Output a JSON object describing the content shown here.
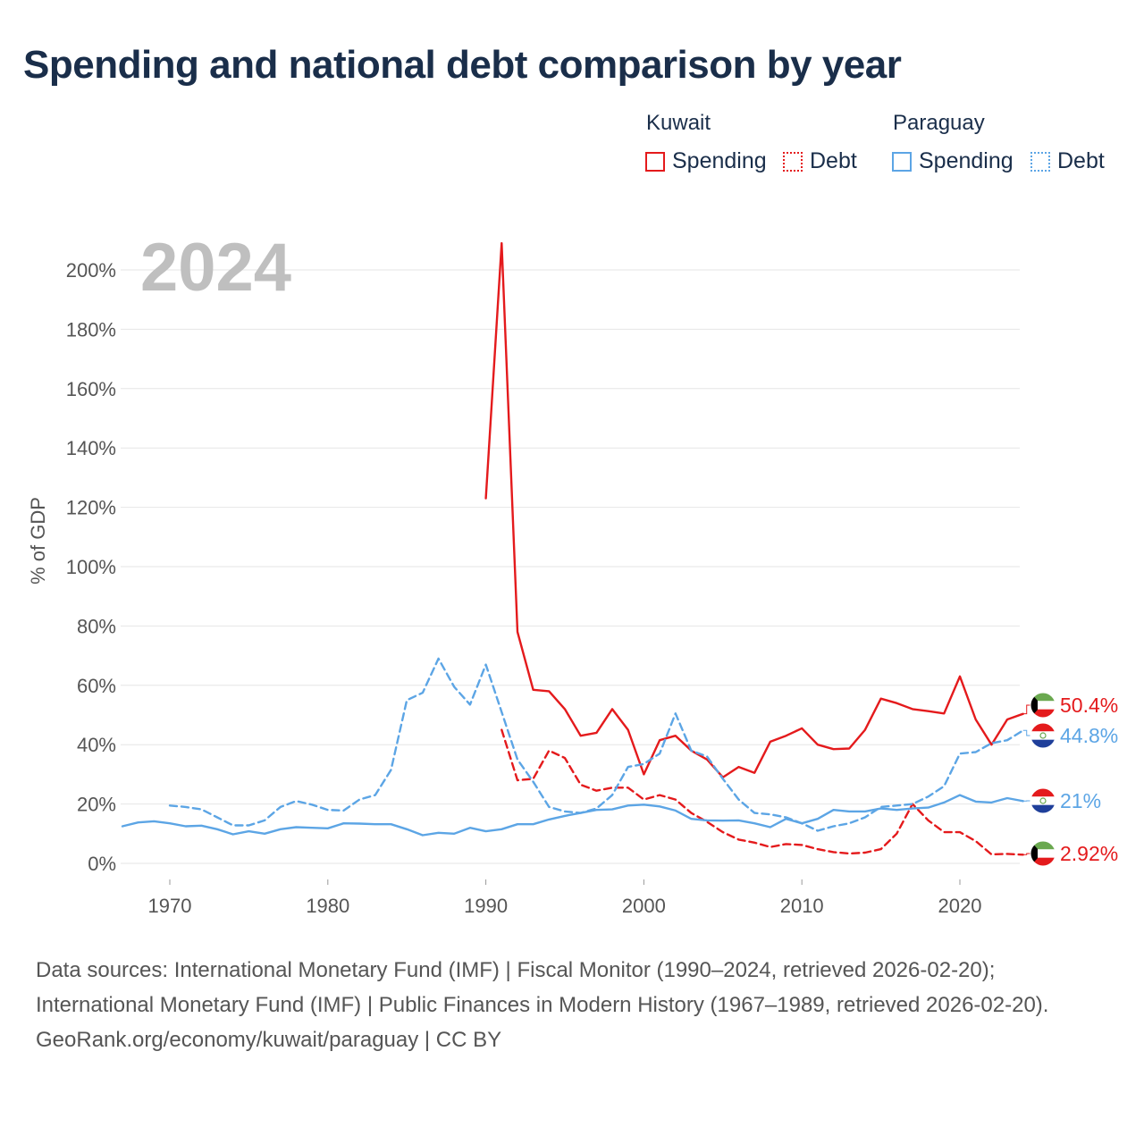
{
  "title": "Spending and national debt comparison by year",
  "legend": {
    "groups": [
      {
        "country": "Kuwait",
        "color": "#e41a1c",
        "items": [
          {
            "label": "Spending",
            "style": "solid"
          },
          {
            "label": "Debt",
            "style": "dotted"
          }
        ]
      },
      {
        "country": "Paraguay",
        "color": "#5ca5e5",
        "items": [
          {
            "label": "Spending",
            "style": "solid"
          },
          {
            "label": "Debt",
            "style": "dotted"
          }
        ]
      }
    ]
  },
  "year_label": "2024",
  "footer": {
    "sources": "Data sources: International Monetary Fund (IMF) | Fiscal Monitor (1990–2024, retrieved 2026-02-20); International Monetary Fund (IMF) | Public Finances in Modern History (1967–1989, retrieved 2026-02-20).",
    "attribution": "GeoRank.org/economy/kuwait/paraguay | CC BY"
  },
  "chart_data": {
    "type": "line",
    "title": "Spending and national debt comparison by year",
    "xlabel": "",
    "ylabel": "% of GDP",
    "xlim": [
      1967,
      2024
    ],
    "ylim": [
      0,
      210
    ],
    "x_ticks": [
      1970,
      1980,
      1990,
      2000,
      2010,
      2020
    ],
    "y_ticks": [
      0,
      20,
      40,
      60,
      80,
      100,
      120,
      140,
      160,
      180,
      200
    ],
    "y_tick_labels": [
      "0%",
      "20%",
      "40%",
      "60%",
      "80%",
      "100%",
      "120%",
      "140%",
      "160%",
      "180%",
      "200%"
    ],
    "grid": true,
    "series": [
      {
        "name": "Kuwait Spending",
        "country": "Kuwait",
        "color": "#e41a1c",
        "dash": "solid",
        "end_label": "50.4%",
        "flag": "kuwait",
        "points": [
          [
            1990,
            123
          ],
          [
            1991,
            209
          ],
          [
            1992,
            78
          ],
          [
            1993,
            58.5
          ],
          [
            1994,
            58
          ],
          [
            1995,
            52
          ],
          [
            1996,
            43
          ],
          [
            1997,
            44
          ],
          [
            1998,
            52
          ],
          [
            1999,
            45
          ],
          [
            2000,
            30
          ],
          [
            2001,
            41.5
          ],
          [
            2002,
            43
          ],
          [
            2003,
            38
          ],
          [
            2004,
            35
          ],
          [
            2005,
            29
          ],
          [
            2006,
            32.5
          ],
          [
            2007,
            30.5
          ],
          [
            2008,
            41
          ],
          [
            2009,
            43
          ],
          [
            2010,
            45.5
          ],
          [
            2011,
            40
          ],
          [
            2012,
            38.5
          ],
          [
            2013,
            38.7
          ],
          [
            2014,
            45
          ],
          [
            2015,
            55.5
          ],
          [
            2016,
            54
          ],
          [
            2017,
            52
          ],
          [
            2018,
            51.3
          ],
          [
            2019,
            50.5
          ],
          [
            2020,
            63
          ],
          [
            2021,
            48.5
          ],
          [
            2022,
            40
          ],
          [
            2023,
            48.5
          ],
          [
            2024,
            50.4
          ]
        ]
      },
      {
        "name": "Kuwait Debt",
        "country": "Kuwait",
        "color": "#e41a1c",
        "dash": "dashed",
        "end_label": "2.92%",
        "flag": "kuwait",
        "points": [
          [
            1991,
            45
          ],
          [
            1992,
            28
          ],
          [
            1993,
            28.5
          ],
          [
            1994,
            38
          ],
          [
            1995,
            35.5
          ],
          [
            1996,
            26.5
          ],
          [
            1997,
            24.5
          ],
          [
            1998,
            25.5
          ],
          [
            1999,
            25.5
          ],
          [
            2000,
            21.5
          ],
          [
            2001,
            23
          ],
          [
            2002,
            21.5
          ],
          [
            2003,
            17
          ],
          [
            2004,
            14
          ],
          [
            2005,
            10.5
          ],
          [
            2006,
            8
          ],
          [
            2007,
            7
          ],
          [
            2008,
            5.5
          ],
          [
            2009,
            6.5
          ],
          [
            2010,
            6.2
          ],
          [
            2011,
            4.8
          ],
          [
            2012,
            3.8
          ],
          [
            2013,
            3.3
          ],
          [
            2014,
            3.6
          ],
          [
            2015,
            4.8
          ],
          [
            2016,
            10
          ],
          [
            2017,
            20
          ],
          [
            2018,
            14.5
          ],
          [
            2019,
            10.5
          ],
          [
            2020,
            10.5
          ],
          [
            2021,
            7.5
          ],
          [
            2022,
            3
          ],
          [
            2023,
            3.2
          ],
          [
            2024,
            2.92
          ]
        ]
      },
      {
        "name": "Paraguay Spending",
        "country": "Paraguay",
        "color": "#5ca5e5",
        "dash": "solid",
        "end_label": "21%",
        "flag": "paraguay",
        "points": [
          [
            1967,
            12.5
          ],
          [
            1968,
            13.8
          ],
          [
            1969,
            14.2
          ],
          [
            1970,
            13.5
          ],
          [
            1971,
            12.5
          ],
          [
            1972,
            12.7
          ],
          [
            1973,
            11.5
          ],
          [
            1974,
            9.8
          ],
          [
            1975,
            10.8
          ],
          [
            1976,
            10
          ],
          [
            1977,
            11.5
          ],
          [
            1978,
            12.2
          ],
          [
            1979,
            12
          ],
          [
            1980,
            11.8
          ],
          [
            1981,
            13.5
          ],
          [
            1982,
            13.4
          ],
          [
            1983,
            13.2
          ],
          [
            1984,
            13.2
          ],
          [
            1985,
            11.5
          ],
          [
            1986,
            9.5
          ],
          [
            1987,
            10.3
          ],
          [
            1988,
            10
          ],
          [
            1989,
            12
          ],
          [
            1990,
            10.8
          ],
          [
            1991,
            11.5
          ],
          [
            1992,
            13.2
          ],
          [
            1993,
            13.2
          ],
          [
            1994,
            14.8
          ],
          [
            1995,
            16
          ],
          [
            1996,
            17
          ],
          [
            1997,
            18
          ],
          [
            1998,
            18.2
          ],
          [
            1999,
            19.5
          ],
          [
            2000,
            19.8
          ],
          [
            2001,
            19.2
          ],
          [
            2002,
            17.8
          ],
          [
            2003,
            15
          ],
          [
            2004,
            14.5
          ],
          [
            2005,
            14.4
          ],
          [
            2006,
            14.5
          ],
          [
            2007,
            13.5
          ],
          [
            2008,
            12.2
          ],
          [
            2009,
            15
          ],
          [
            2010,
            13.5
          ],
          [
            2011,
            15
          ],
          [
            2012,
            18
          ],
          [
            2013,
            17.5
          ],
          [
            2014,
            17.5
          ],
          [
            2015,
            18.5
          ],
          [
            2016,
            18
          ],
          [
            2017,
            18.5
          ],
          [
            2018,
            18.8
          ],
          [
            2019,
            20.5
          ],
          [
            2020,
            23
          ],
          [
            2021,
            20.8
          ],
          [
            2022,
            20.5
          ],
          [
            2023,
            22
          ],
          [
            2024,
            21
          ]
        ]
      },
      {
        "name": "Paraguay Debt",
        "country": "Paraguay",
        "color": "#5ca5e5",
        "dash": "dashed",
        "end_label": "44.8%",
        "flag": "paraguay",
        "points": [
          [
            1970,
            19.5
          ],
          [
            1971,
            19
          ],
          [
            1972,
            18.2
          ],
          [
            1973,
            15.5
          ],
          [
            1974,
            12.8
          ],
          [
            1975,
            12.8
          ],
          [
            1976,
            14.5
          ],
          [
            1977,
            19
          ],
          [
            1978,
            21
          ],
          [
            1979,
            19.8
          ],
          [
            1980,
            18
          ],
          [
            1981,
            17.8
          ],
          [
            1982,
            21.5
          ],
          [
            1983,
            23
          ],
          [
            1984,
            31.5
          ],
          [
            1985,
            55
          ],
          [
            1986,
            57.5
          ],
          [
            1987,
            69
          ],
          [
            1988,
            59.5
          ],
          [
            1989,
            53.5
          ],
          [
            1990,
            67
          ],
          [
            1991,
            51
          ],
          [
            1992,
            35
          ],
          [
            1993,
            27.5
          ],
          [
            1994,
            19
          ],
          [
            1995,
            17.5
          ],
          [
            1996,
            17
          ],
          [
            1997,
            18.5
          ],
          [
            1998,
            23
          ],
          [
            1999,
            32.5
          ],
          [
            2000,
            33.5
          ],
          [
            2001,
            37
          ],
          [
            2002,
            50.5
          ],
          [
            2003,
            38
          ],
          [
            2004,
            36
          ],
          [
            2005,
            28.5
          ],
          [
            2006,
            21.5
          ],
          [
            2007,
            17
          ],
          [
            2008,
            16.5
          ],
          [
            2009,
            15.5
          ],
          [
            2010,
            13.5
          ],
          [
            2011,
            11
          ],
          [
            2012,
            12.5
          ],
          [
            2013,
            13.5
          ],
          [
            2014,
            15.5
          ],
          [
            2015,
            19
          ],
          [
            2016,
            19.5
          ],
          [
            2017,
            20
          ],
          [
            2018,
            22.5
          ],
          [
            2019,
            26
          ],
          [
            2020,
            37
          ],
          [
            2021,
            37.5
          ],
          [
            2022,
            40.5
          ],
          [
            2023,
            41.5
          ],
          [
            2024,
            44.8
          ]
        ]
      }
    ]
  }
}
